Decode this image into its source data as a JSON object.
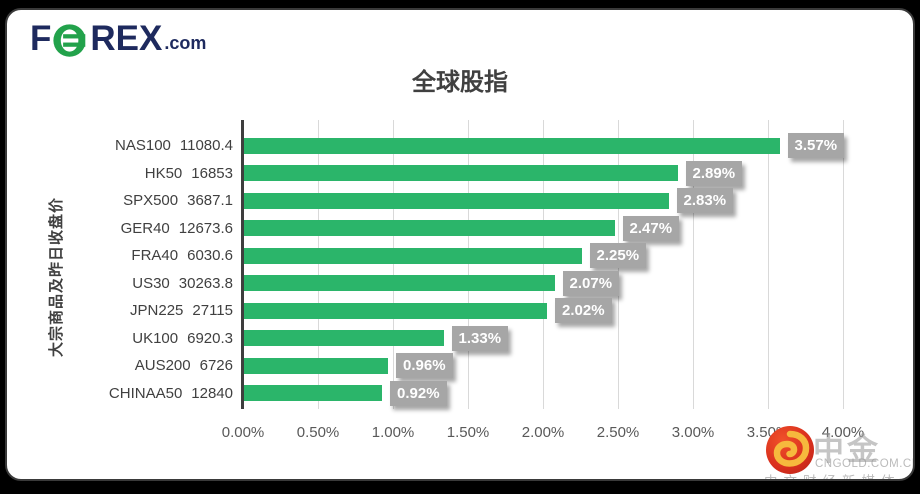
{
  "logo": {
    "part1": "F",
    "part2": "REX",
    "suffix": ".com",
    "navy": "#1e2a5e",
    "green": "#22a24b"
  },
  "chart_data": {
    "type": "bar",
    "orientation": "horizontal",
    "title": "全球股指",
    "y_axis_title": "大宗商品及昨日收盘价",
    "categories": [
      "NAS100",
      "HK50",
      "SPX500",
      "GER40",
      "FRA40",
      "US30",
      "JPN225",
      "UK100",
      "AUS200",
      "CHINAA50"
    ],
    "prev_close": [
      "11080.4",
      "16853",
      "3687.1",
      "12673.6",
      "6030.6",
      "30263.8",
      "27115",
      "6920.3",
      "6726",
      "12840"
    ],
    "values": [
      3.57,
      2.89,
      2.83,
      2.47,
      2.25,
      2.07,
      2.02,
      1.33,
      0.96,
      0.92
    ],
    "data_labels": [
      "3.57%",
      "2.89%",
      "2.83%",
      "2.47%",
      "2.25%",
      "2.07%",
      "2.02%",
      "1.33%",
      "0.96%",
      "0.92%"
    ],
    "xlim": [
      0,
      4
    ],
    "x_tick_labels": [
      "0.00%",
      "0.50%",
      "1.00%",
      "1.50%",
      "2.00%",
      "2.50%",
      "3.00%",
      "3.50%",
      "4.00%"
    ],
    "grid": "vertical",
    "legend_position": "none",
    "bar_color": "#2bb56a",
    "label_bg_color": "#a6a6a6",
    "axis_line_color": "#3e3e3e",
    "gridline_color": "#d9d9d9"
  },
  "watermark": {
    "name": "中金网",
    "domain": "CNGOLD.COM.CN",
    "tagline": "中文财经新媒体"
  }
}
